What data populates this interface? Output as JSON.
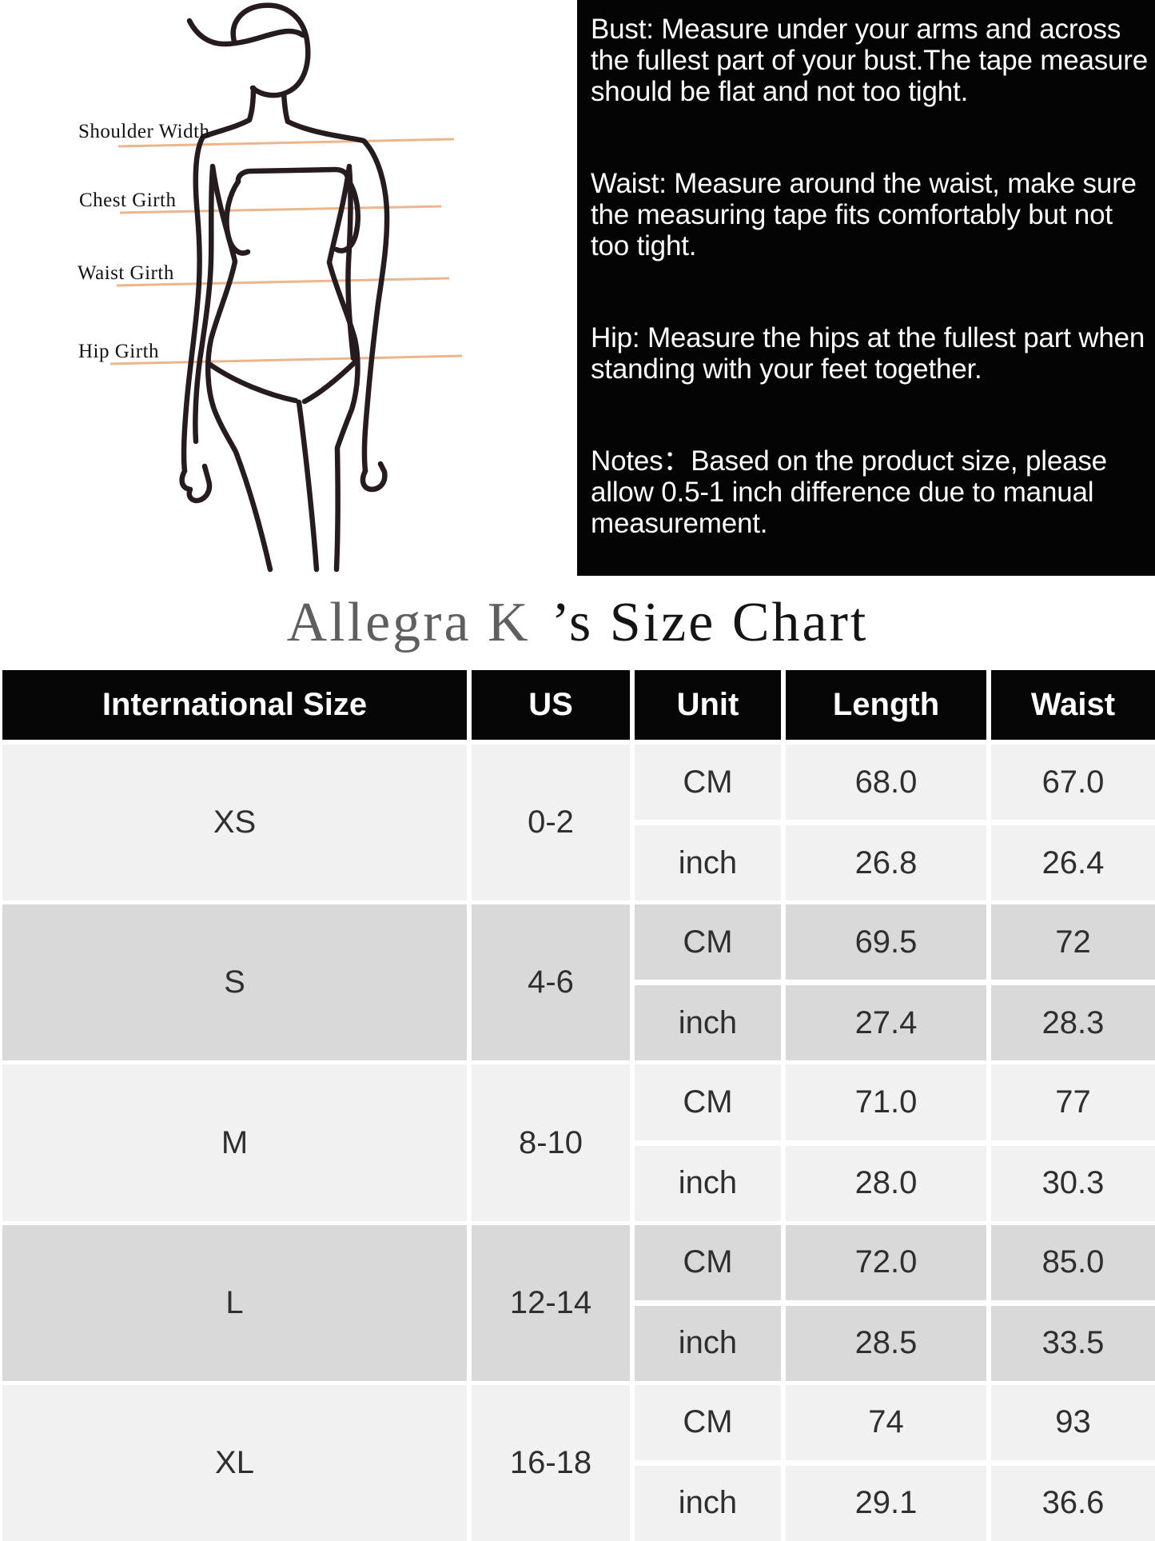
{
  "measure_diagram": {
    "labels": [
      {
        "text": "Shoulder Width"
      },
      {
        "text": "Chest Girth"
      },
      {
        "text": "Waist Girth"
      },
      {
        "text": "Hip Girth"
      }
    ],
    "line_color": "#ecb58b",
    "body_line_color": "#261b1e"
  },
  "info_box": {
    "background": "#040404",
    "paragraphs": [
      "Bust: Measure under your arms and across the fullest part of your bust.The tape measure should be flat and not too tight.",
      "Waist: Measure around the waist, make sure the measuring tape fits comfortably but not too tight.",
      "Hip: Measure the hips at the fullest part when standing with your feet together.",
      "Notes：Based on the product size, please allow 0.5-1 inch difference due to manual measurement."
    ]
  },
  "title": {
    "brand": "Allegra K",
    "rest": "’s Size Chart"
  },
  "chart_data": {
    "type": "table",
    "title": "Allegra K ’s Size Chart",
    "columns": [
      "International Size",
      "US",
      "Unit",
      "Length",
      "Waist"
    ],
    "units": [
      "CM",
      "inch"
    ],
    "sizes": [
      {
        "international_size": "XS",
        "us": "0-2",
        "cm": {
          "length": "68.0",
          "waist": "67.0"
        },
        "inch": {
          "length": "26.8",
          "waist": "26.4"
        }
      },
      {
        "international_size": "S",
        "us": "4-6",
        "cm": {
          "length": "69.5",
          "waist": "72"
        },
        "inch": {
          "length": "27.4",
          "waist": "28.3"
        }
      },
      {
        "international_size": "M",
        "us": "8-10",
        "cm": {
          "length": "71.0",
          "waist": "77"
        },
        "inch": {
          "length": "28.0",
          "waist": "30.3"
        }
      },
      {
        "international_size": "L",
        "us": "12-14",
        "cm": {
          "length": "72.0",
          "waist": "85.0"
        },
        "inch": {
          "length": "28.5",
          "waist": "33.5"
        }
      },
      {
        "international_size": "XL",
        "us": "16-18",
        "cm": {
          "length": "74",
          "waist": "93"
        },
        "inch": {
          "length": "29.1",
          "waist": "36.6"
        }
      }
    ],
    "header_bg": "#060606",
    "row_shades": [
      "#f1f1f1",
      "#d9d9d9"
    ]
  }
}
